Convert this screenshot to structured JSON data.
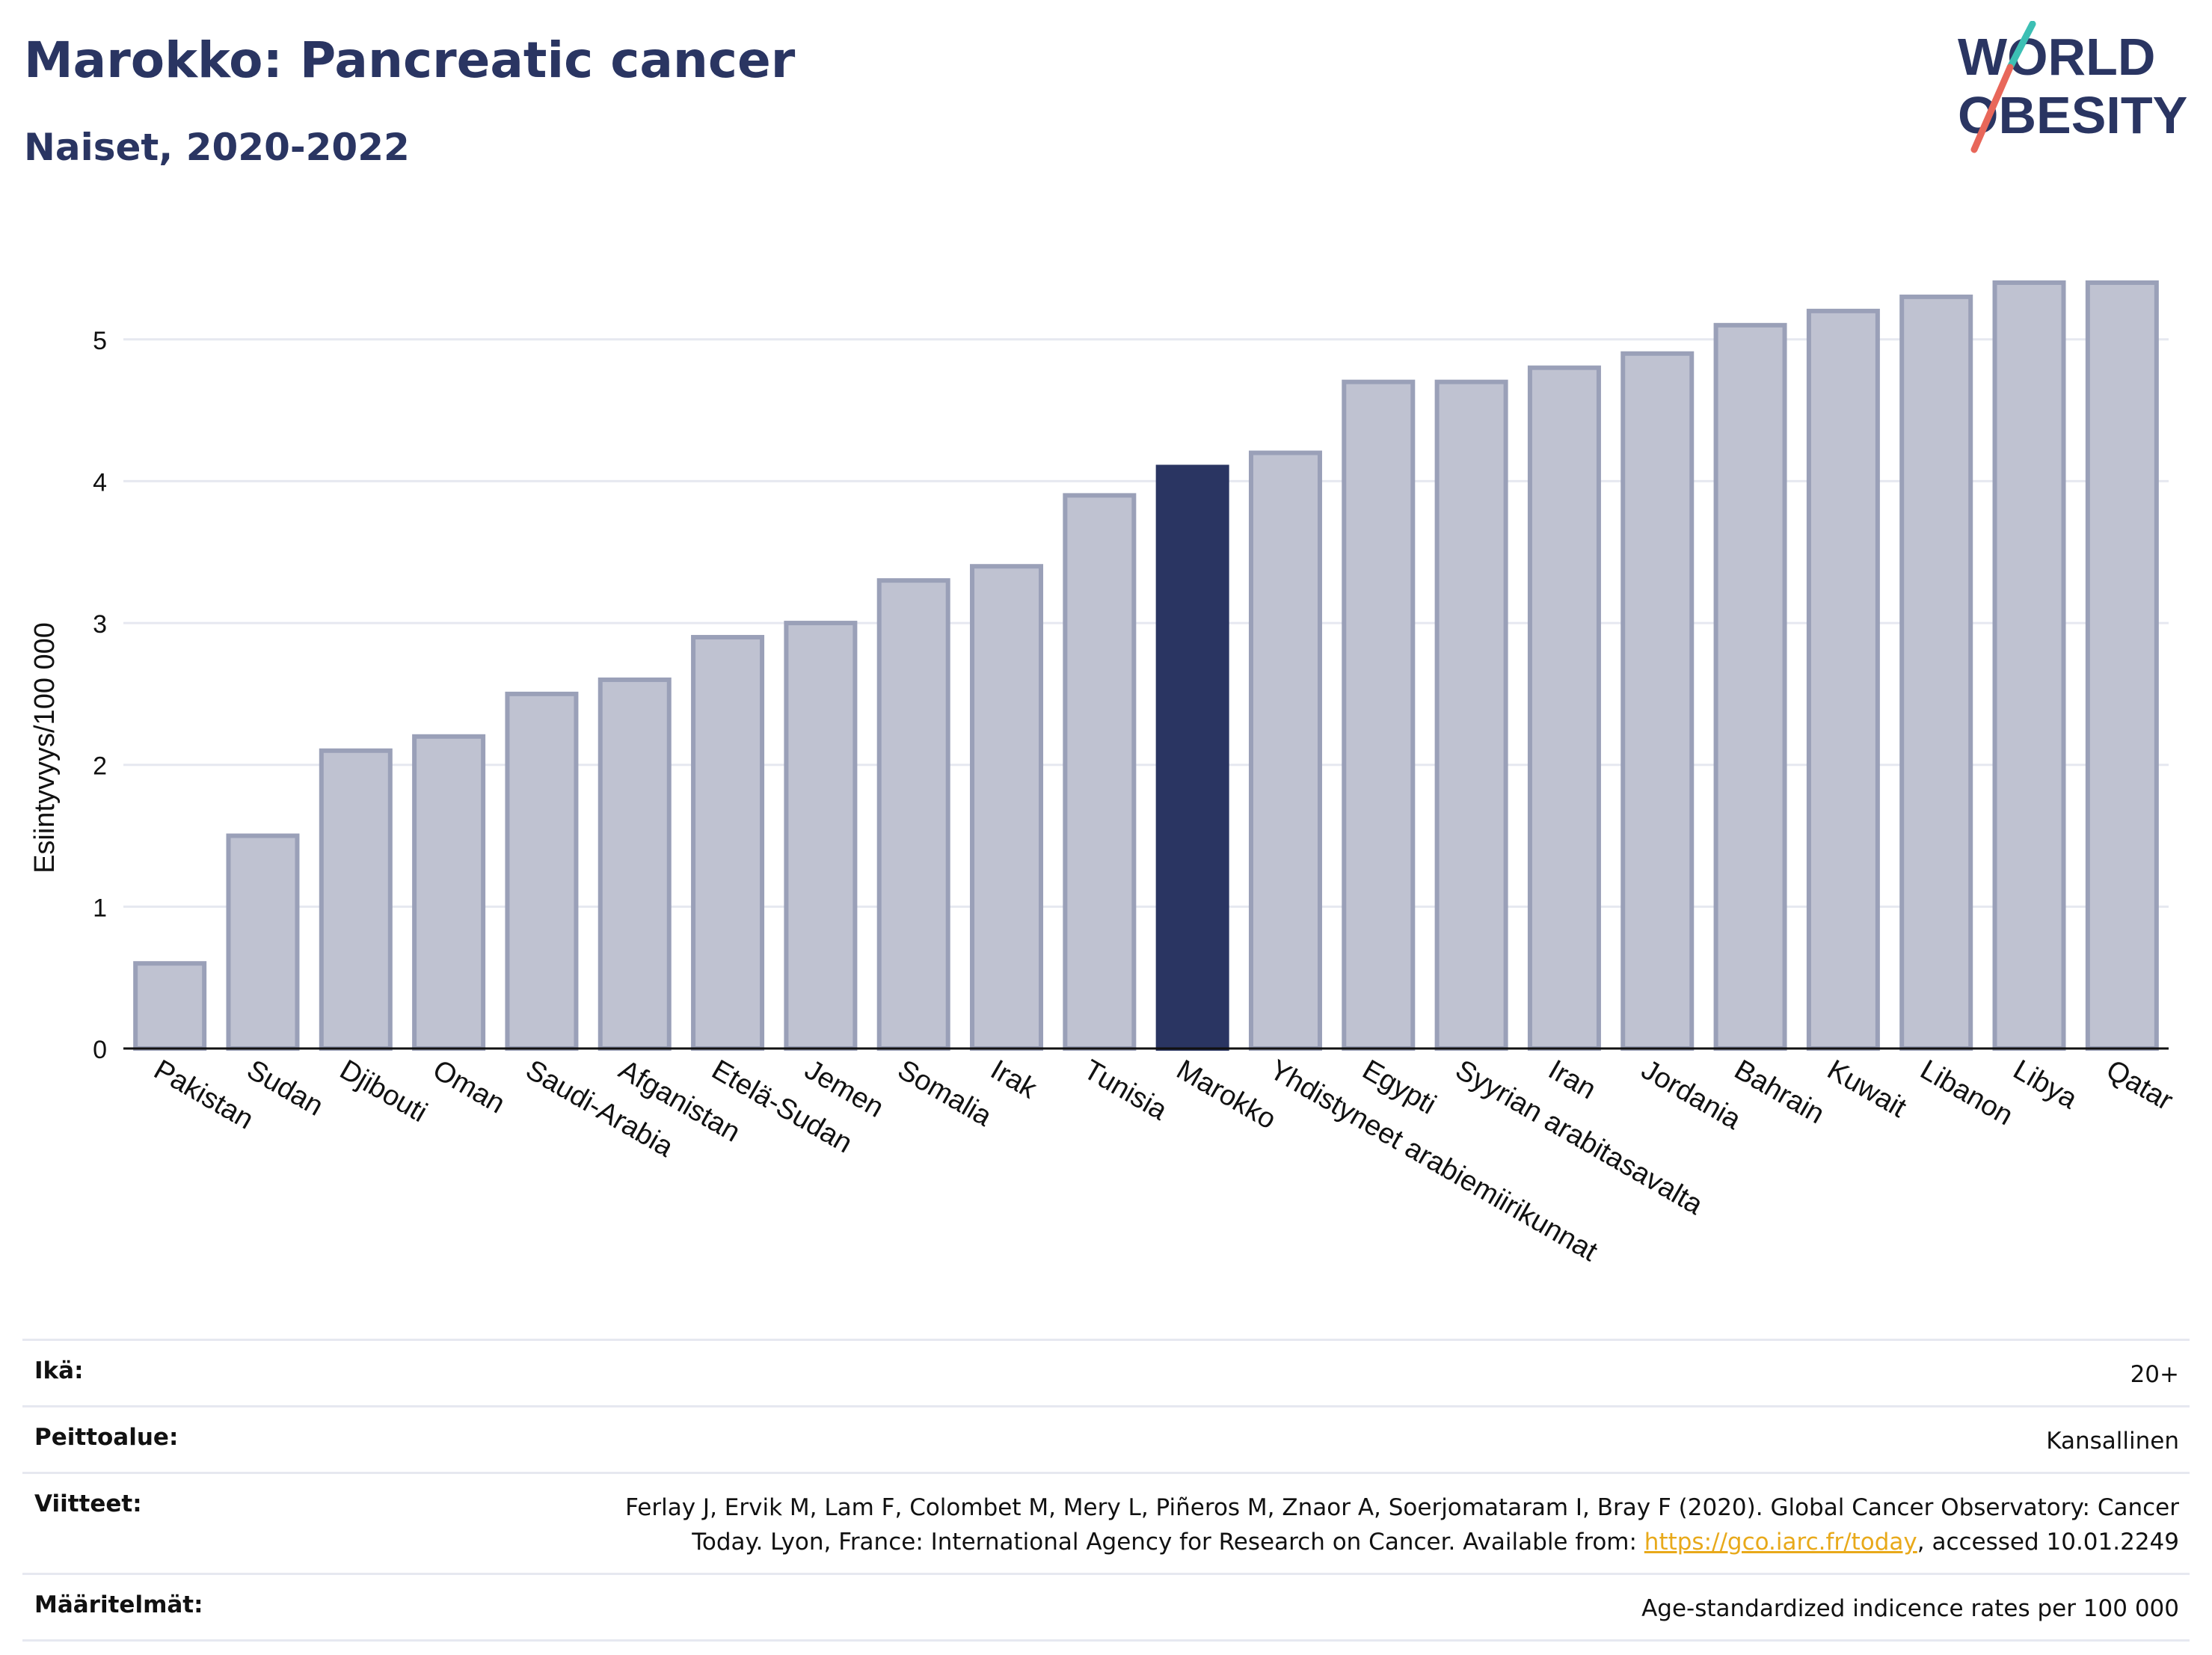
{
  "header": {
    "title": "Marokko: Pancreatic cancer",
    "subtitle": "Naiset, 2020-2022"
  },
  "logo": {
    "line1": "WORLD",
    "line2": "OBESITY",
    "accent_teal": "#3cbfb4",
    "accent_red": "#e8675a",
    "text_color": "#2a3562"
  },
  "colors": {
    "bar": "#bfc2d1",
    "bar_border": "#9aa0b8",
    "highlight": "#2a3562",
    "grid": "#e6e8f0"
  },
  "chart_data": {
    "type": "bar",
    "title": "Marokko: Pancreatic cancer",
    "subtitle": "Naiset, 2020-2022",
    "xlabel": "",
    "ylabel": "Esiintyvyys/100 000",
    "ylim": [
      0,
      5.6
    ],
    "yticks": [
      0,
      1,
      2,
      3,
      4,
      5
    ],
    "grid": true,
    "highlight": "Marokko",
    "categories": [
      "Pakistan",
      "Sudan",
      "Djibouti",
      "Oman",
      "Saudi-Arabia",
      "Afganistan",
      "Etelä-Sudan",
      "Jemen",
      "Somalia",
      "Irak",
      "Tunisia",
      "Marokko",
      "Yhdistyneet arabiemiirikunnat",
      "Egypti",
      "Syyrian arabitasavalta",
      "Iran",
      "Jordania",
      "Bahrain",
      "Kuwait",
      "Libanon",
      "Libya",
      "Qatar"
    ],
    "values": [
      0.6,
      1.5,
      2.1,
      2.2,
      2.5,
      2.6,
      2.9,
      3.0,
      3.3,
      3.4,
      3.9,
      4.1,
      4.2,
      4.7,
      4.7,
      4.8,
      4.9,
      5.1,
      5.2,
      5.3,
      5.4,
      5.4
    ]
  },
  "meta": {
    "age_label": "Ikä:",
    "age_value": "20+",
    "coverage_label": "Peittoalue:",
    "coverage_value": "Kansallinen",
    "refs_label": "Viitteet:",
    "refs_text": "Ferlay J, Ervik M, Lam F, Colombet M, Mery L, Piñeros M, Znaor A, Soerjomataram I, Bray F (2020). Global Cancer Observatory: Cancer Today. Lyon, France: International Agency for Research on Cancer. Available from: ",
    "refs_link": "https://gco.iarc.fr/today",
    "refs_tail": ", accessed 10.01.2249",
    "defs_label": "Määritelmät:",
    "defs_value": "Age-standardized indicence rates per 100 000"
  }
}
